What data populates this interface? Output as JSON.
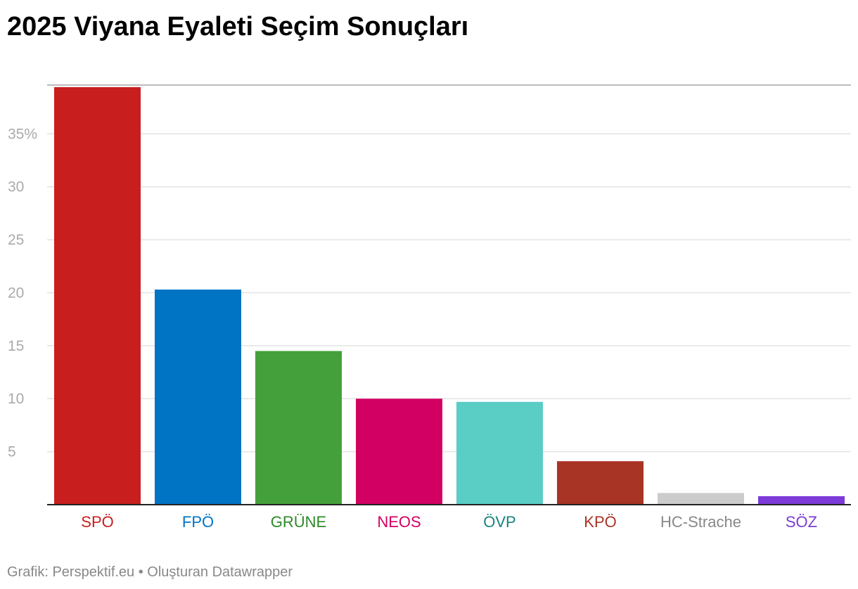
{
  "chart_data": {
    "type": "bar",
    "title": "2025 Viyana Eyaleti Seçim Sonuçları",
    "xlabel": "",
    "ylabel": "",
    "ylim": [
      0,
      39.6
    ],
    "grid": true,
    "y_ticks": [
      {
        "value": 5,
        "label": "5"
      },
      {
        "value": 10,
        "label": "10"
      },
      {
        "value": 15,
        "label": "15"
      },
      {
        "value": 20,
        "label": "20"
      },
      {
        "value": 25,
        "label": "25"
      },
      {
        "value": 30,
        "label": "30"
      },
      {
        "value": 35,
        "label": "35%"
      }
    ],
    "categories": [
      "SPÖ",
      "FPÖ",
      "GRÜNE",
      "NEOS",
      "ÖVP",
      "KPÖ",
      "HC-Strache",
      "SÖZ"
    ],
    "values": [
      39.4,
      20.3,
      14.5,
      10.0,
      9.7,
      4.1,
      1.1,
      0.8
    ],
    "colors": [
      "#c81e1e",
      "#0074c4",
      "#44a03b",
      "#d20062",
      "#5acdc5",
      "#a83425",
      "#cccccc",
      "#7c3ad8"
    ],
    "label_colors": [
      "#c81e1e",
      "#0074c4",
      "#2e8a28",
      "#d20062",
      "#178480",
      "#a83425",
      "#888888",
      "#7c3ad8"
    ]
  },
  "footer": {
    "credit": "Grafik: Perspektif.eu • Oluşturan Datawrapper"
  }
}
